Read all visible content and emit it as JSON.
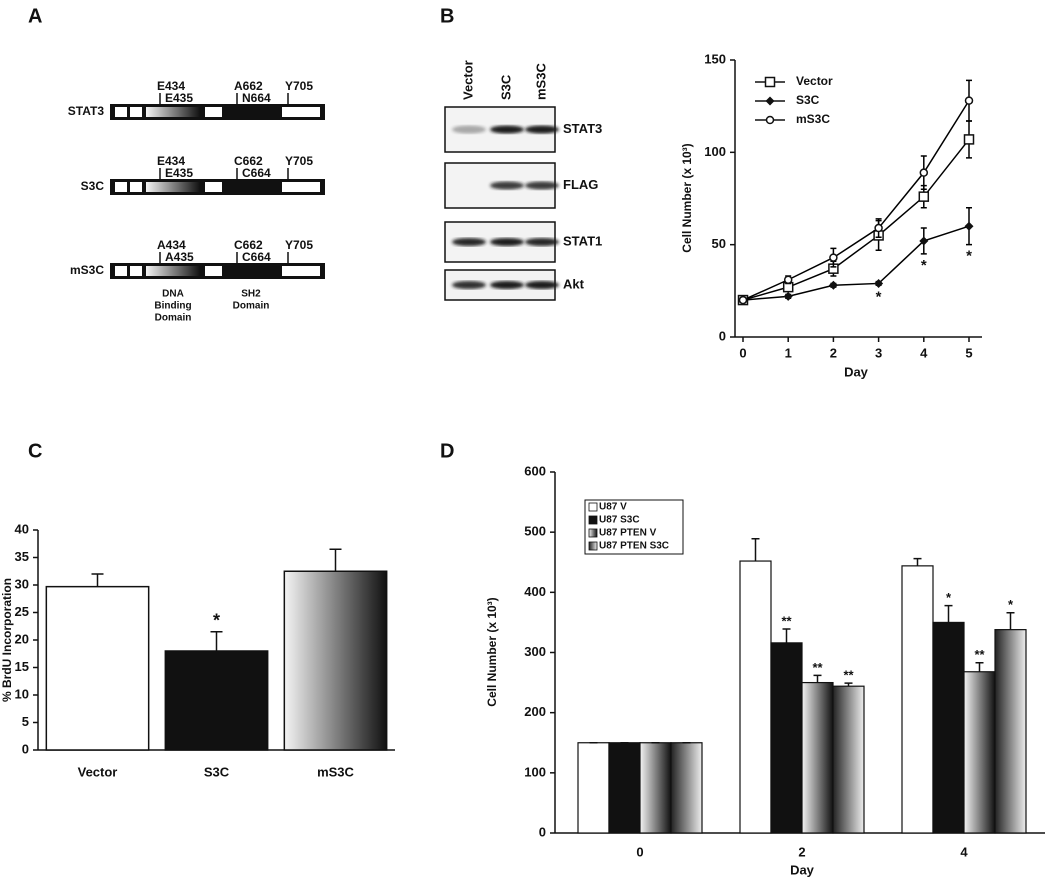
{
  "panel_labels": [
    "A",
    "B",
    "C",
    "D"
  ],
  "constructs": {
    "rows": [
      {
        "name": "STAT3",
        "sites": [
          "E434",
          "E435",
          "A662",
          "N664",
          "Y705"
        ]
      },
      {
        "name": "S3C",
        "sites": [
          "E434",
          "E435",
          "C662",
          "C664",
          "Y705"
        ]
      },
      {
        "name": "mS3C",
        "sites": [
          "A434",
          "A435",
          "C662",
          "C664",
          "Y705"
        ]
      }
    ],
    "domains": [
      [
        "DNA",
        "Binding",
        "Domain"
      ],
      [
        "SH2",
        "Domain"
      ]
    ]
  },
  "blot": {
    "lanes": [
      "Vector",
      "S3C",
      "mS3C"
    ],
    "rows": [
      "STAT3",
      "FLAG",
      "STAT1",
      "Akt"
    ]
  },
  "chart_data": [
    {
      "type": "line",
      "x": [
        0,
        1,
        2,
        3,
        4,
        5
      ],
      "xlim": [
        0,
        5
      ],
      "xticks": [
        0,
        1,
        2,
        3,
        4,
        5
      ],
      "ylim": [
        0,
        150
      ],
      "yticks": [
        0,
        50,
        100,
        150
      ],
      "xlabel": "Day",
      "ylabel": "Cell Number (x 10³)",
      "legend": "upper left",
      "series": [
        {
          "name": "Vector",
          "color": "#000000",
          "marker": "square",
          "values": [
            20,
            27,
            37,
            55,
            76,
            107
          ],
          "errors": [
            0,
            2,
            4,
            8,
            6,
            10
          ]
        },
        {
          "name": "S3C",
          "color": "#000000",
          "marker": "diamond",
          "values": [
            20,
            22,
            28,
            29,
            52,
            60
          ],
          "errors": [
            0,
            1,
            1,
            1,
            7,
            10
          ],
          "annotations": [
            null,
            null,
            null,
            "*",
            "*",
            "*"
          ]
        },
        {
          "name": "mS3C",
          "color": "#000000",
          "marker": "circle",
          "values": [
            20,
            31,
            43,
            59,
            89,
            128
          ],
          "errors": [
            0,
            2,
            5,
            5,
            9,
            11
          ]
        }
      ]
    },
    {
      "type": "bar",
      "categories": [
        "Vector",
        "S3C",
        "mS3C"
      ],
      "values": [
        29.7,
        18,
        32.5
      ],
      "errors": [
        2.3,
        3.5,
        4
      ],
      "fills": [
        "white",
        "black",
        "gradient"
      ],
      "annotations": [
        null,
        "*",
        null
      ],
      "ylim": [
        0,
        40
      ],
      "yticks": [
        0,
        5,
        10,
        15,
        20,
        25,
        30,
        35,
        40
      ],
      "ylabel": "% BrdU Incorporation"
    },
    {
      "type": "grouped-bar",
      "categories": [
        "0",
        "2",
        "4"
      ],
      "xlabel": "Day",
      "ylabel": "Cell Number (x 10³)",
      "ylim": [
        0,
        600
      ],
      "yticks": [
        0,
        100,
        200,
        300,
        400,
        500,
        600
      ],
      "legend": "upper left",
      "series": [
        {
          "name": "U87 V",
          "fill": "white",
          "values": [
            150,
            452,
            444
          ],
          "errors": [
            0,
            37,
            12
          ]
        },
        {
          "name": "U87 S3C",
          "fill": "black",
          "values": [
            150,
            316,
            350
          ],
          "errors": [
            0,
            23,
            28
          ],
          "annotations": [
            null,
            "**",
            "*"
          ]
        },
        {
          "name": "U87 PTEN V",
          "fill": "gradient",
          "values": [
            150,
            250,
            268
          ],
          "errors": [
            0,
            12,
            15
          ],
          "annotations": [
            null,
            "**",
            "**"
          ]
        },
        {
          "name": "U87 PTEN S3C",
          "fill": "gradient-reversed",
          "values": [
            150,
            244,
            338
          ],
          "errors": [
            0,
            5,
            28
          ],
          "annotations": [
            null,
            "**",
            "*"
          ]
        }
      ]
    }
  ]
}
